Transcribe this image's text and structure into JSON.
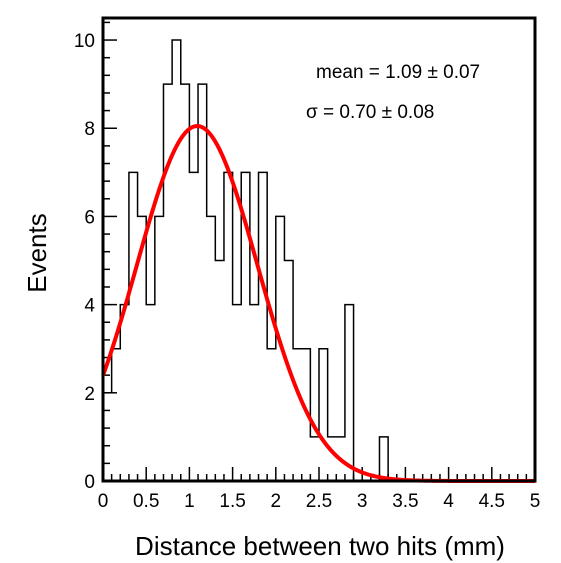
{
  "chart_data": {
    "type": "histogram",
    "title": "",
    "xlabel": "Distance between two hits (mm)",
    "ylabel": "Events",
    "xlim": [
      0,
      5
    ],
    "ylim": [
      0,
      10.5
    ],
    "grid": false,
    "x_major_ticks": [
      0,
      0.5,
      1,
      1.5,
      2,
      2.5,
      3,
      3.5,
      4,
      4.5,
      5
    ],
    "x_tick_labels": [
      "0",
      "0.5",
      "1",
      "1.5",
      "2",
      "2.5",
      "3",
      "3.5",
      "4",
      "4.5",
      "5"
    ],
    "y_major_ticks": [
      0,
      2,
      4,
      6,
      8,
      10
    ],
    "y_tick_labels": [
      "0",
      "2",
      "4",
      "6",
      "8",
      "10"
    ],
    "bin_width": 0.1,
    "bins_start": 0,
    "bin_counts": [
      2,
      3,
      4,
      7,
      6,
      4,
      6,
      9,
      10,
      9,
      7,
      9,
      6,
      5,
      7,
      4,
      7,
      4,
      7,
      3,
      6,
      5,
      3,
      3,
      1,
      3,
      1,
      1,
      4,
      0,
      0,
      0,
      1,
      0,
      0,
      0,
      0,
      0,
      0,
      0,
      0,
      0,
      0,
      0,
      0,
      0,
      0,
      0,
      0,
      0
    ],
    "fit": {
      "function": "gaussian",
      "color": "#ff0000",
      "mean": 1.09,
      "sigma": 0.7,
      "amplitude": 8.05
    },
    "annotations": [
      "mean = 1.09 ± 0.07",
      "σ = 0.70 ± 0.08"
    ],
    "histogram_color": "#000000"
  }
}
